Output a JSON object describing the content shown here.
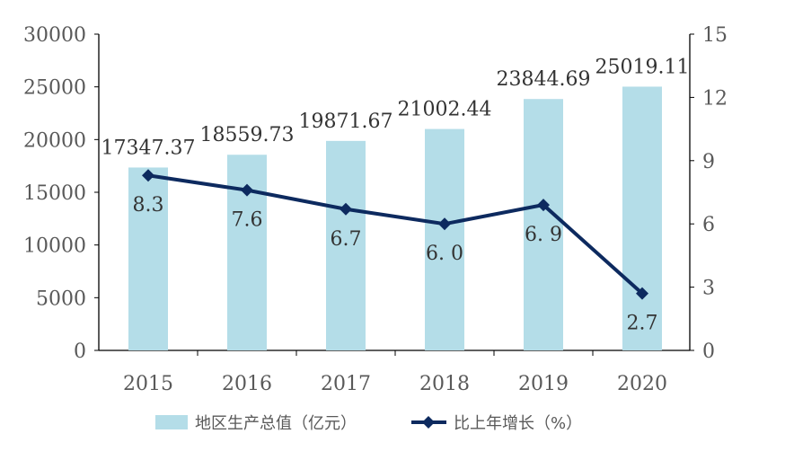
{
  "chart_data": {
    "type": "bar+line",
    "categories": [
      "2015",
      "2016",
      "2017",
      "2018",
      "2019",
      "2020"
    ],
    "series": [
      {
        "name": "地区生产总值（亿元）",
        "type": "bar",
        "axis": "left",
        "values": [
          17347.37,
          18559.73,
          19871.67,
          21002.44,
          23844.69,
          25019.11
        ],
        "labels": [
          "17347.37",
          "18559.73",
          "19871.67",
          "21002.44",
          "23844.69",
          "25019.11"
        ],
        "color": "#b4dde8"
      },
      {
        "name": "比上年增长（%）",
        "type": "line",
        "axis": "right",
        "values": [
          8.3,
          7.6,
          6.7,
          6.0,
          6.9,
          2.7
        ],
        "labels": [
          "8.3",
          "7.6",
          "6.7",
          "6. 0",
          "6. 9",
          "2.7"
        ],
        "color": "#0d2a5f"
      }
    ],
    "left_axis": {
      "ylim": [
        0,
        30000
      ],
      "ticks": [
        "0",
        "5000",
        "10000",
        "15000",
        "20000",
        "25000",
        "30000"
      ]
    },
    "right_axis": {
      "ylim": [
        0,
        15
      ],
      "ticks": [
        "0",
        "3",
        "6",
        "9",
        "12",
        "15"
      ]
    },
    "legend": "bottom",
    "grid": false
  }
}
